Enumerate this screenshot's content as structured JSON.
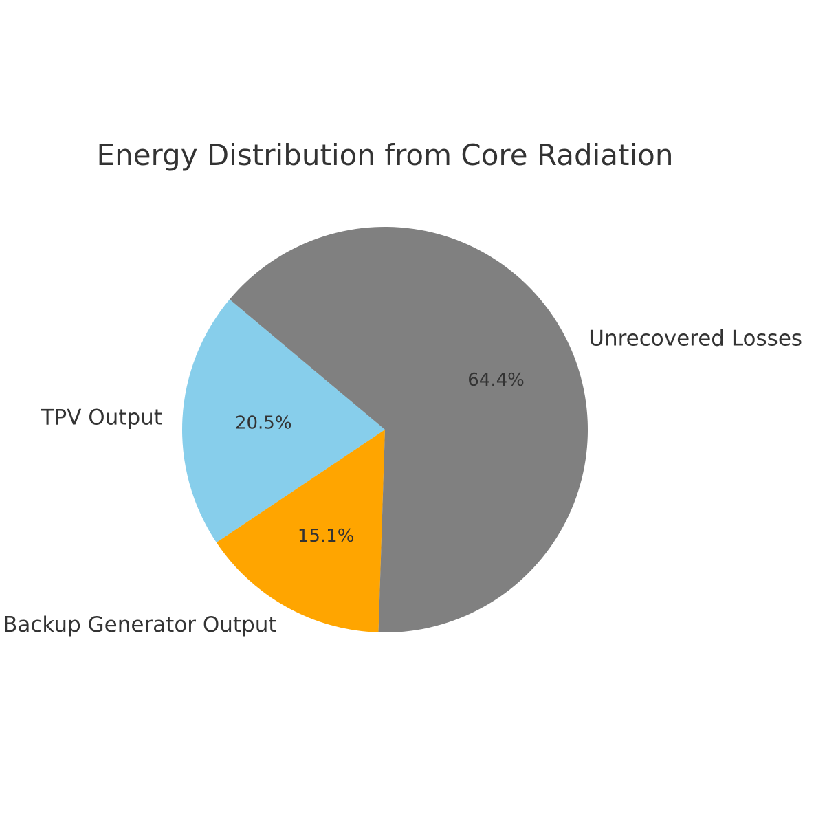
{
  "chart_data": {
    "type": "pie",
    "title": "Energy Distribution from Core Radiation",
    "slices": [
      {
        "label": "TPV Output",
        "value": 20.5,
        "pct_label": "20.5%",
        "color": "#87CEEB"
      },
      {
        "label": "Backup Generator Output",
        "value": 15.1,
        "pct_label": "15.1%",
        "color": "#FFA500"
      },
      {
        "label": "Unrecovered Losses",
        "value": 64.4,
        "pct_label": "64.4%",
        "color": "#808080"
      }
    ],
    "start_angle_deg": 140,
    "direction": "counterclockwise",
    "legend": "none"
  }
}
